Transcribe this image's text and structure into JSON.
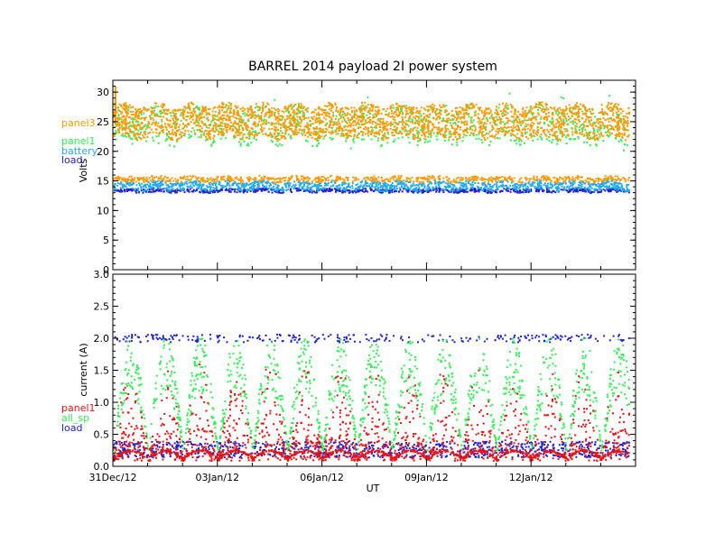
{
  "title": "BARREL 2014 payload 2I power system",
  "xlabel": "UT",
  "colors": {
    "panel3": "#ff9900",
    "panel1_volts": "#33ee55",
    "battery": "#22aaee",
    "load": "#2222cc",
    "panel1_current": "#ee1111",
    "all_sp": "#33ee55",
    "load_current": "#2222cc"
  },
  "chart_data": [
    {
      "type": "scatter",
      "ylabel": "Volts",
      "ylim": [
        0,
        32
      ],
      "yticks": [
        "0",
        "5",
        "10",
        "15",
        "20",
        "25",
        "30"
      ],
      "xlim": [
        0,
        15
      ],
      "xticks": [
        {
          "x": 0,
          "label": "31Dec/12"
        },
        {
          "x": 3,
          "label": "03Jan/12"
        },
        {
          "x": 6,
          "label": "06Jan/12"
        },
        {
          "x": 9,
          "label": "09Jan/12"
        },
        {
          "x": 12,
          "label": "12Jan/12"
        }
      ],
      "legend": [
        "panel3",
        "panel1",
        "battery",
        "load"
      ],
      "series": [
        {
          "name": "panel3",
          "color": "#ff9900",
          "band": [
            22.5,
            28.0
          ],
          "spike": 31,
          "description_level": 25.5
        },
        {
          "name": "panel1",
          "color": "#33ee55",
          "band": [
            21.5,
            27.5
          ]
        },
        {
          "name": "battery",
          "color": "#22aaee",
          "band": [
            13.6,
            15.0
          ]
        },
        {
          "name": "load",
          "color": "#2222cc",
          "band": [
            13.2,
            13.8
          ]
        },
        {
          "name": "panel3-low",
          "color": "#ff9900",
          "band": [
            15.0,
            15.9
          ]
        }
      ]
    },
    {
      "type": "scatter",
      "ylabel": "current (A)",
      "ylim": [
        0,
        3.0
      ],
      "yticks": [
        "0.0",
        "0.5",
        "1.0",
        "1.5",
        "2.0",
        "2.5",
        "3.0"
      ],
      "xlim": [
        0,
        15
      ],
      "legend": [
        "panel1",
        "all_sp",
        "load"
      ],
      "series": [
        {
          "name": "panel1",
          "color": "#ee1111",
          "range": [
            0.05,
            1.8
          ]
        },
        {
          "name": "all_sp",
          "color": "#33ee55",
          "range": [
            0.2,
            2.1
          ]
        },
        {
          "name": "load",
          "color": "#2222cc",
          "range": [
            0.1,
            2.05
          ]
        }
      ]
    }
  ]
}
